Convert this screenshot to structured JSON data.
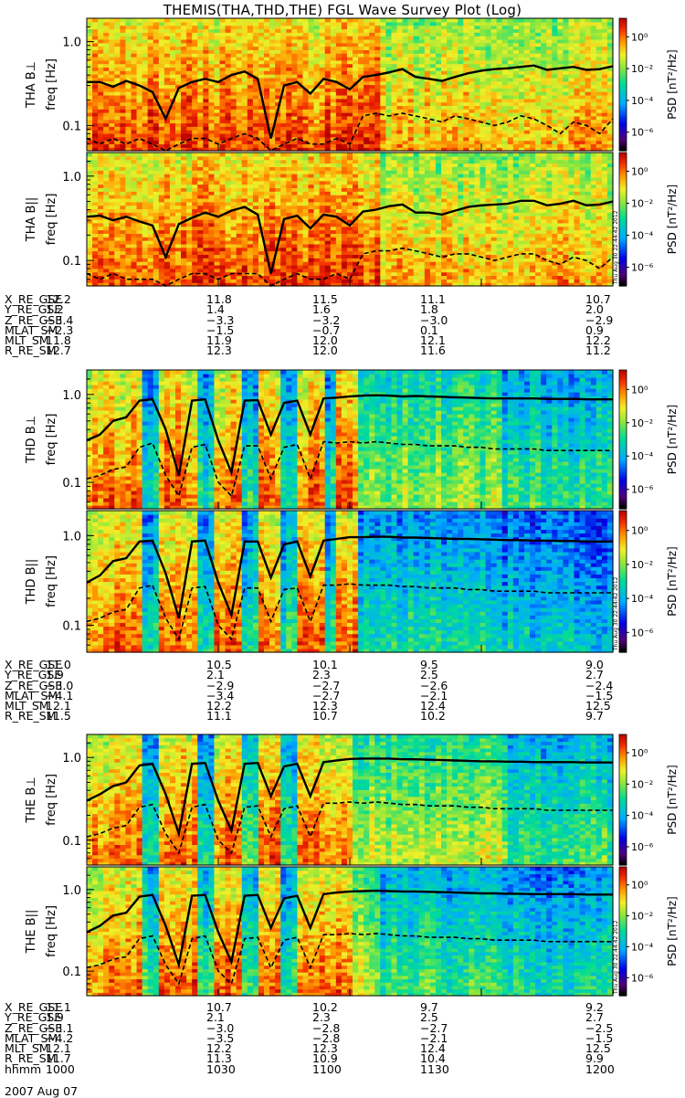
{
  "title": "THEMIS(THA,THD,THE) FGL Wave Survey Plot (Log)",
  "date_label": "2007 Aug 07",
  "timestamp_stamp": "Thu Aug 30 22:44:42 2012",
  "colors": {
    "solid_line": "#000000",
    "dashed_line": "#000000"
  },
  "colorbar": {
    "label": "PSD [nT²/Hz]",
    "ticks": [
      "10⁰",
      "10⁻²",
      "10⁻⁴",
      "10⁻⁶"
    ]
  },
  "chart_data": [
    {
      "type": "heatmap",
      "ylabel": "THA B⊥",
      "yunits": "freq [Hz]",
      "yscale": "log",
      "yticks": [
        "1.0",
        "0.1"
      ],
      "solid": [
        0.33,
        0.33,
        0.29,
        0.34,
        0.3,
        0.25,
        0.12,
        0.28,
        0.33,
        0.36,
        0.33,
        0.4,
        0.44,
        0.36,
        0.07,
        0.3,
        0.33,
        0.24,
        0.36,
        0.33,
        0.27,
        0.38,
        0.4,
        0.43,
        0.47,
        0.38,
        0.36,
        0.34,
        0.38,
        0.42,
        0.45,
        0.47,
        0.48,
        0.5,
        0.52,
        0.46,
        0.48,
        0.5,
        0.46,
        0.47,
        0.51
      ],
      "dashed": [
        0.07,
        0.06,
        0.07,
        0.06,
        0.07,
        0.06,
        0.05,
        0.06,
        0.07,
        0.07,
        0.06,
        0.07,
        0.08,
        0.07,
        0.05,
        0.06,
        0.07,
        0.06,
        0.06,
        0.07,
        0.06,
        0.13,
        0.14,
        0.13,
        0.14,
        0.13,
        0.12,
        0.11,
        0.13,
        0.12,
        0.11,
        0.1,
        0.11,
        0.13,
        0.12,
        0.1,
        0.08,
        0.11,
        0.1,
        0.08,
        0.12
      ]
    },
    {
      "type": "heatmap",
      "ylabel": "THA B||",
      "yunits": "freq [Hz]",
      "yscale": "log",
      "yticks": [
        "1.0",
        "0.1"
      ],
      "solid": [
        0.33,
        0.34,
        0.3,
        0.33,
        0.29,
        0.26,
        0.11,
        0.27,
        0.32,
        0.37,
        0.33,
        0.39,
        0.43,
        0.35,
        0.07,
        0.31,
        0.34,
        0.24,
        0.35,
        0.33,
        0.26,
        0.38,
        0.4,
        0.44,
        0.46,
        0.37,
        0.37,
        0.35,
        0.39,
        0.43,
        0.45,
        0.46,
        0.47,
        0.51,
        0.51,
        0.45,
        0.47,
        0.51,
        0.45,
        0.46,
        0.5
      ],
      "dashed": [
        0.07,
        0.06,
        0.07,
        0.06,
        0.06,
        0.06,
        0.05,
        0.06,
        0.07,
        0.07,
        0.06,
        0.07,
        0.07,
        0.07,
        0.05,
        0.06,
        0.07,
        0.06,
        0.06,
        0.07,
        0.06,
        0.12,
        0.13,
        0.13,
        0.14,
        0.13,
        0.12,
        0.11,
        0.12,
        0.12,
        0.11,
        0.1,
        0.11,
        0.12,
        0.12,
        0.1,
        0.09,
        0.11,
        0.1,
        0.08,
        0.11
      ]
    },
    {
      "type": "heatmap",
      "ylabel": "THD B⊥",
      "yunits": "freq [Hz]",
      "yscale": "log",
      "yticks": [
        "1.0",
        "0.1"
      ],
      "solid": [
        0.3,
        0.35,
        0.5,
        0.55,
        0.85,
        0.88,
        0.4,
        0.12,
        0.85,
        0.88,
        0.3,
        0.13,
        0.85,
        0.86,
        0.35,
        0.8,
        0.85,
        0.35,
        0.9,
        0.92,
        0.95,
        0.97,
        0.98,
        0.97,
        0.95,
        0.96,
        0.95,
        0.94,
        0.93,
        0.92,
        0.91,
        0.9,
        0.9,
        0.9,
        0.9,
        0.89,
        0.89,
        0.89,
        0.88,
        0.88,
        0.88
      ],
      "dashed": [
        0.11,
        0.12,
        0.14,
        0.15,
        0.25,
        0.28,
        0.12,
        0.07,
        0.25,
        0.27,
        0.1,
        0.07,
        0.26,
        0.26,
        0.11,
        0.25,
        0.27,
        0.11,
        0.29,
        0.28,
        0.29,
        0.28,
        0.29,
        0.28,
        0.27,
        0.27,
        0.26,
        0.26,
        0.26,
        0.25,
        0.25,
        0.24,
        0.24,
        0.24,
        0.24,
        0.23,
        0.23,
        0.23,
        0.23,
        0.23,
        0.23
      ]
    },
    {
      "type": "heatmap",
      "ylabel": "THD B||",
      "yunits": "freq [Hz]",
      "yscale": "log",
      "yticks": [
        "1.0",
        "0.1"
      ],
      "solid": [
        0.3,
        0.36,
        0.52,
        0.56,
        0.86,
        0.88,
        0.38,
        0.12,
        0.86,
        0.88,
        0.3,
        0.13,
        0.86,
        0.86,
        0.34,
        0.8,
        0.86,
        0.35,
        0.88,
        0.92,
        0.96,
        0.96,
        0.97,
        0.97,
        0.95,
        0.95,
        0.94,
        0.93,
        0.92,
        0.92,
        0.91,
        0.9,
        0.89,
        0.89,
        0.88,
        0.88,
        0.87,
        0.87,
        0.86,
        0.86,
        0.86
      ],
      "dashed": [
        0.11,
        0.12,
        0.14,
        0.15,
        0.26,
        0.28,
        0.12,
        0.07,
        0.26,
        0.27,
        0.1,
        0.07,
        0.26,
        0.26,
        0.11,
        0.25,
        0.26,
        0.11,
        0.28,
        0.28,
        0.29,
        0.28,
        0.28,
        0.28,
        0.27,
        0.27,
        0.26,
        0.26,
        0.26,
        0.25,
        0.25,
        0.24,
        0.24,
        0.24,
        0.24,
        0.23,
        0.23,
        0.23,
        0.23,
        0.23,
        0.23
      ]
    },
    {
      "type": "heatmap",
      "ylabel": "THE B⊥",
      "yunits": "freq [Hz]",
      "yscale": "log",
      "yticks": [
        "1.0",
        "0.1"
      ],
      "solid": [
        0.3,
        0.36,
        0.45,
        0.5,
        0.8,
        0.84,
        0.36,
        0.12,
        0.84,
        0.86,
        0.3,
        0.13,
        0.84,
        0.86,
        0.34,
        0.78,
        0.84,
        0.34,
        0.88,
        0.92,
        0.96,
        0.97,
        0.97,
        0.97,
        0.95,
        0.95,
        0.94,
        0.93,
        0.92,
        0.91,
        0.9,
        0.9,
        0.89,
        0.89,
        0.88,
        0.88,
        0.88,
        0.88,
        0.87,
        0.87,
        0.87
      ],
      "dashed": [
        0.11,
        0.12,
        0.14,
        0.15,
        0.25,
        0.27,
        0.12,
        0.07,
        0.25,
        0.27,
        0.1,
        0.07,
        0.25,
        0.26,
        0.11,
        0.24,
        0.26,
        0.11,
        0.28,
        0.28,
        0.29,
        0.28,
        0.29,
        0.28,
        0.27,
        0.27,
        0.26,
        0.26,
        0.26,
        0.25,
        0.25,
        0.24,
        0.24,
        0.24,
        0.24,
        0.23,
        0.23,
        0.23,
        0.23,
        0.23,
        0.23
      ]
    },
    {
      "type": "heatmap",
      "ylabel": "THE B||",
      "yunits": "freq [Hz]",
      "yscale": "log",
      "yticks": [
        "1.0",
        "0.1"
      ],
      "solid": [
        0.3,
        0.36,
        0.48,
        0.52,
        0.82,
        0.86,
        0.36,
        0.12,
        0.84,
        0.86,
        0.3,
        0.13,
        0.84,
        0.86,
        0.34,
        0.78,
        0.84,
        0.34,
        0.88,
        0.92,
        0.95,
        0.96,
        0.97,
        0.96,
        0.95,
        0.95,
        0.94,
        0.93,
        0.92,
        0.91,
        0.9,
        0.9,
        0.89,
        0.89,
        0.88,
        0.88,
        0.88,
        0.88,
        0.87,
        0.87,
        0.87
      ],
      "dashed": [
        0.11,
        0.12,
        0.14,
        0.15,
        0.25,
        0.27,
        0.12,
        0.07,
        0.25,
        0.27,
        0.1,
        0.07,
        0.25,
        0.26,
        0.11,
        0.24,
        0.26,
        0.11,
        0.28,
        0.28,
        0.29,
        0.28,
        0.29,
        0.28,
        0.27,
        0.27,
        0.26,
        0.26,
        0.26,
        0.25,
        0.25,
        0.24,
        0.24,
        0.24,
        0.24,
        0.23,
        0.23,
        0.23,
        0.23,
        0.23,
        0.23
      ]
    }
  ],
  "ephemeris": [
    {
      "rows": [
        {
          "label": "X_RE_GSE",
          "values": [
            "12.2",
            "11.8",
            "11.5",
            "11.1",
            "10.7"
          ]
        },
        {
          "label": "Y_RE_GSE",
          "values": [
            "1.2",
            "1.4",
            "1.6",
            "1.8",
            "2.0"
          ]
        },
        {
          "label": "Z_RE_GSE",
          "values": [
            "−3.4",
            "−3.3",
            "−3.2",
            "−3.0",
            "−2.9"
          ]
        },
        {
          "label": "MLAT_SM",
          "values": [
            "−2.3",
            "−1.5",
            "−0.7",
            "0.1",
            "0.9"
          ]
        },
        {
          "label": "MLT_SM",
          "values": [
            "11.8",
            "11.9",
            "12.0",
            "12.1",
            "12.2"
          ]
        },
        {
          "label": "R_RE_SM",
          "values": [
            "12.7",
            "12.3",
            "12.0",
            "11.6",
            "11.2"
          ]
        }
      ]
    },
    {
      "rows": [
        {
          "label": "X_RE_GSE",
          "values": [
            "11.0",
            "10.5",
            "10.1",
            "9.5",
            "9.0"
          ]
        },
        {
          "label": "Y_RE_GSE",
          "values": [
            "1.9",
            "2.1",
            "2.3",
            "2.5",
            "2.7"
          ]
        },
        {
          "label": "Z_RE_GSE",
          "values": [
            "−3.0",
            "−2.9",
            "−2.7",
            "−2.6",
            "−2.4"
          ]
        },
        {
          "label": "MLAT_SM",
          "values": [
            "−4.1",
            "−3.4",
            "−2.7",
            "−2.1",
            "−1.5"
          ]
        },
        {
          "label": "MLT_SM",
          "values": [
            "12.1",
            "12.2",
            "12.3",
            "12.4",
            "12.5"
          ]
        },
        {
          "label": "R_RE_SM",
          "values": [
            "11.5",
            "11.1",
            "10.7",
            "10.2",
            "9.7"
          ]
        }
      ]
    },
    {
      "rows": [
        {
          "label": "X_RE_GSE",
          "values": [
            "11.1",
            "10.7",
            "10.2",
            "9.7",
            "9.2"
          ]
        },
        {
          "label": "Y_RE_GSE",
          "values": [
            "1.9",
            "2.1",
            "2.3",
            "2.5",
            "2.7"
          ]
        },
        {
          "label": "Z_RE_GSE",
          "values": [
            "−3.1",
            "−3.0",
            "−2.8",
            "−2.7",
            "−2.5"
          ]
        },
        {
          "label": "MLAT_SM",
          "values": [
            "−4.2",
            "−3.5",
            "−2.8",
            "−2.1",
            "−1.5"
          ]
        },
        {
          "label": "MLT_SM",
          "values": [
            "12.1",
            "12.2",
            "12.3",
            "12.4",
            "12.5"
          ]
        },
        {
          "label": "R_RE_SM",
          "values": [
            "11.7",
            "11.3",
            "10.9",
            "10.4",
            "9.9"
          ]
        },
        {
          "label": "hhmm",
          "values": [
            "1000",
            "1030",
            "1100",
            "1130",
            "1200"
          ]
        }
      ]
    }
  ]
}
